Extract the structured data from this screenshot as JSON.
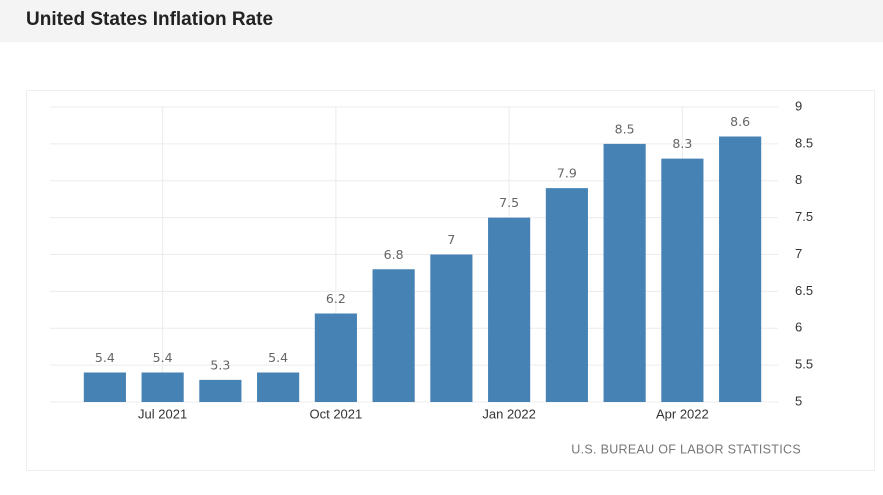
{
  "chart_data": {
    "type": "bar",
    "title": "United States Inflation Rate",
    "categories": [
      null,
      "Jul 2021",
      null,
      null,
      "Oct 2021",
      null,
      null,
      "Jan 2022",
      null,
      null,
      "Apr 2022",
      null
    ],
    "values": [
      5.4,
      5.4,
      5.3,
      5.4,
      6.2,
      6.8,
      7,
      7.5,
      7.9,
      8.5,
      8.3,
      8.6
    ],
    "color": "#4682b4",
    "ylim": [
      5,
      9
    ],
    "yticks": [
      5,
      5.5,
      6,
      6.5,
      7,
      7.5,
      8,
      8.5,
      9
    ],
    "grid": true,
    "source": "U.S. BUREAU OF LABOR STATISTICS"
  }
}
